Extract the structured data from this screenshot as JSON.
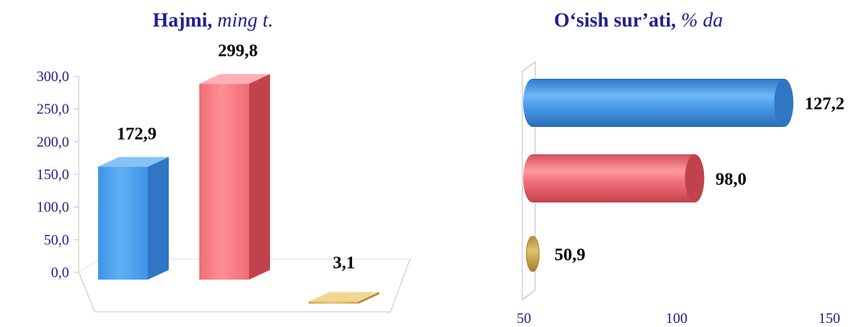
{
  "colors": {
    "text": "#1f1f8f",
    "series_palette": [
      {
        "light": "#4da3ef",
        "dark": "#2f76c4",
        "top": "#86c2f6"
      },
      {
        "light": "#ff8088",
        "dark": "#c2424c",
        "top": "#ffb1b7"
      },
      {
        "light": "#d8b45a",
        "dark": "#a8842c",
        "top": "#f0d790"
      }
    ]
  },
  "left": {
    "title_main": "Hajmi,",
    "title_unit": "ming t."
  },
  "right": {
    "title_main": "O‘sish sur’ati,",
    "title_unit": "% da"
  },
  "chart_data": [
    {
      "type": "bar",
      "orientation": "vertical",
      "title": "Hajmi, ming t.",
      "values": [
        172.9,
        299.8,
        3.1
      ],
      "value_labels": [
        "172,9",
        "299,8",
        "3,1"
      ],
      "ylim": [
        0,
        300
      ],
      "yticks": [
        0,
        50,
        100,
        150,
        200,
        250,
        300
      ],
      "ytick_labels": [
        "0,0",
        "50,0",
        "100,0",
        "150,0",
        "200,0",
        "250,0",
        "300,0"
      ],
      "style": "3d"
    },
    {
      "type": "bar",
      "orientation": "horizontal",
      "title": "O‘sish sur’ati, % da",
      "values": [
        127.2,
        98.0,
        50.9
      ],
      "value_labels": [
        "127,2",
        "98,0",
        "50,9"
      ],
      "xlim": [
        50,
        150
      ],
      "xticks": [
        50,
        100,
        150
      ],
      "xtick_labels": [
        "50",
        "100",
        "150"
      ],
      "style": "3d-cylinder"
    }
  ]
}
